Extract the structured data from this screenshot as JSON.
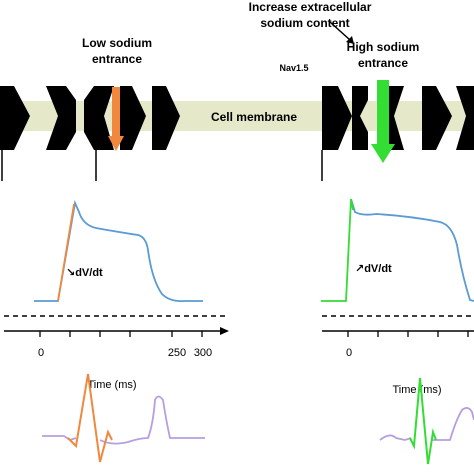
{
  "labels": {
    "low_sodium_line1": "Low sodium",
    "low_sodium_line2": "entrance",
    "increase_line1": "Increase extracellular",
    "increase_line2": "sodium content",
    "high_sodium_line1": "High sodium",
    "high_sodium_line2": "entrance",
    "channel": "Nav1.5",
    "membrane": "Cell membrane",
    "dvdt_low": "↘dV/dt",
    "dvdt_high": "↗dV/dt",
    "time_axis_left": "Time (ms)",
    "time_axis_right": "Time (ms)"
  },
  "ticks_left": [
    "0",
    "250",
    "300"
  ],
  "tick_right": "0",
  "colors": {
    "membrane": "#e5e8c9",
    "channel": "#000000",
    "low_accent": "#f0883e",
    "high_accent": "#33dd33",
    "ap_trace": "#5b9bd5",
    "ecg_trace": "#b79ee0"
  }
}
